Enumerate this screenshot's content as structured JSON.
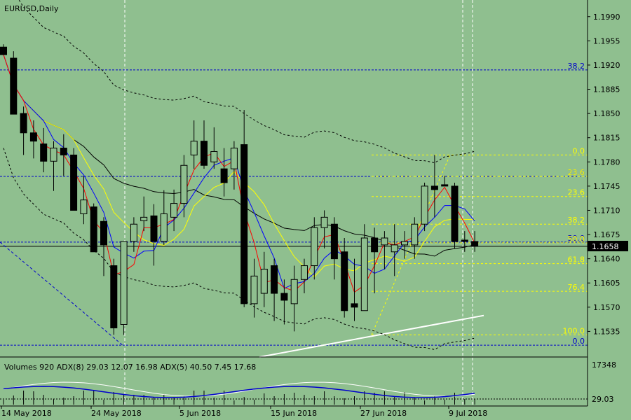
{
  "chart_title": "EURUSD,Daily",
  "indicator_title": "Volumes 920 ADX(8) 29.03 12.07 16.98 ADX(5) 40.50 7.45 17.68",
  "current_price_label": "1.1658",
  "colors": {
    "background": "#8fbf8f",
    "bear": "#000000",
    "bull": "#8fbf8f",
    "ma_fast": "#ff0000",
    "ma_mid": "#0000ff",
    "ma_slow": "#ffff00",
    "ma_long": "#000000",
    "fib": "#ffff00",
    "hlines": "#0000cc",
    "trendline": "#ffffff"
  },
  "chart_data": {
    "type": "candlestick",
    "symbol": "EURUSD",
    "timeframe": "Daily",
    "ylim": [
      1.15,
      1.201
    ],
    "y_ticks": [
      "1.1990",
      "1.1955",
      "1.1920",
      "1.1885",
      "1.1850",
      "1.1815",
      "1.1780",
      "1.1745",
      "1.1710",
      "1.1675",
      "1.1640",
      "1.1605",
      "1.1570",
      "1.1535"
    ],
    "x_tick_labels": [
      "14 May 2018",
      "24 May 2018",
      "5 Jun 2018",
      "15 Jun 2018",
      "27 Jun 2018",
      "9 Jul 2018"
    ],
    "candles": [
      {
        "o": 1.1946,
        "h": 1.195,
        "l": 1.1935,
        "c": 1.1935
      },
      {
        "o": 1.193,
        "h": 1.194,
        "l": 1.1849,
        "c": 1.1849
      },
      {
        "o": 1.185,
        "h": 1.186,
        "l": 1.179,
        "c": 1.1822
      },
      {
        "o": 1.1822,
        "h": 1.184,
        "l": 1.1785,
        "c": 1.181
      },
      {
        "o": 1.1806,
        "h": 1.1829,
        "l": 1.1765,
        "c": 1.1781
      },
      {
        "o": 1.1781,
        "h": 1.181,
        "l": 1.1738,
        "c": 1.18
      },
      {
        "o": 1.18,
        "h": 1.182,
        "l": 1.176,
        "c": 1.179
      },
      {
        "o": 1.179,
        "h": 1.18,
        "l": 1.171,
        "c": 1.171
      },
      {
        "o": 1.1705,
        "h": 1.176,
        "l": 1.169,
        "c": 1.1725
      },
      {
        "o": 1.1715,
        "h": 1.172,
        "l": 1.165,
        "c": 1.165
      },
      {
        "o": 1.1694,
        "h": 1.17,
        "l": 1.1615,
        "c": 1.166
      },
      {
        "o": 1.163,
        "h": 1.164,
        "l": 1.153,
        "c": 1.154
      },
      {
        "o": 1.1545,
        "h": 1.1665,
        "l": 1.153,
        "c": 1.1665
      },
      {
        "o": 1.1665,
        "h": 1.17,
        "l": 1.165,
        "c": 1.169
      },
      {
        "o": 1.1695,
        "h": 1.173,
        "l": 1.168,
        "c": 1.17
      },
      {
        "o": 1.1702,
        "h": 1.1719,
        "l": 1.163,
        "c": 1.1665
      },
      {
        "o": 1.1665,
        "h": 1.1739,
        "l": 1.166,
        "c": 1.1705
      },
      {
        "o": 1.17,
        "h": 1.174,
        "l": 1.168,
        "c": 1.172
      },
      {
        "o": 1.172,
        "h": 1.179,
        "l": 1.17,
        "c": 1.1775
      },
      {
        "o": 1.179,
        "h": 1.184,
        "l": 1.177,
        "c": 1.181
      },
      {
        "o": 1.181,
        "h": 1.184,
        "l": 1.177,
        "c": 1.1775
      },
      {
        "o": 1.178,
        "h": 1.183,
        "l": 1.177,
        "c": 1.1795
      },
      {
        "o": 1.177,
        "h": 1.18,
        "l": 1.173,
        "c": 1.175
      },
      {
        "o": 1.177,
        "h": 1.181,
        "l": 1.174,
        "c": 1.18
      },
      {
        "o": 1.1805,
        "h": 1.1855,
        "l": 1.157,
        "c": 1.1575
      },
      {
        "o": 1.1575,
        "h": 1.164,
        "l": 1.1555,
        "c": 1.1615
      },
      {
        "o": 1.159,
        "h": 1.165,
        "l": 1.157,
        "c": 1.1625
      },
      {
        "o": 1.163,
        "h": 1.164,
        "l": 1.155,
        "c": 1.159
      },
      {
        "o": 1.159,
        "h": 1.161,
        "l": 1.1545,
        "c": 1.158
      },
      {
        "o": 1.1575,
        "h": 1.163,
        "l": 1.1535,
        "c": 1.161
      },
      {
        "o": 1.161,
        "h": 1.164,
        "l": 1.159,
        "c": 1.163
      },
      {
        "o": 1.163,
        "h": 1.17,
        "l": 1.161,
        "c": 1.1685
      },
      {
        "o": 1.1685,
        "h": 1.171,
        "l": 1.1655,
        "c": 1.17
      },
      {
        "o": 1.169,
        "h": 1.17,
        "l": 1.161,
        "c": 1.164
      },
      {
        "o": 1.165,
        "h": 1.167,
        "l": 1.1555,
        "c": 1.1565
      },
      {
        "o": 1.1575,
        "h": 1.164,
        "l": 1.155,
        "c": 1.157
      },
      {
        "o": 1.1565,
        "h": 1.169,
        "l": 1.1565,
        "c": 1.167
      },
      {
        "o": 1.167,
        "h": 1.1685,
        "l": 1.159,
        "c": 1.165
      },
      {
        "o": 1.166,
        "h": 1.168,
        "l": 1.1625,
        "c": 1.167
      },
      {
        "o": 1.165,
        "h": 1.169,
        "l": 1.1615,
        "c": 1.166
      },
      {
        "o": 1.166,
        "h": 1.168,
        "l": 1.164,
        "c": 1.1665
      },
      {
        "o": 1.166,
        "h": 1.17,
        "l": 1.164,
        "c": 1.169
      },
      {
        "o": 1.169,
        "h": 1.175,
        "l": 1.168,
        "c": 1.1745
      },
      {
        "o": 1.1745,
        "h": 1.179,
        "l": 1.17,
        "c": 1.174
      },
      {
        "o": 1.1747,
        "h": 1.176,
        "l": 1.1745,
        "c": 1.1745
      },
      {
        "o": 1.1745,
        "h": 1.175,
        "l": 1.1655,
        "c": 1.1665
      },
      {
        "o": 1.1667,
        "h": 1.168,
        "l": 1.165,
        "c": 1.1665
      },
      {
        "o": 1.1665,
        "h": 1.168,
        "l": 1.165,
        "c": 1.1658
      }
    ],
    "fib_levels": [
      {
        "label": "0.0",
        "price": 1.179
      },
      {
        "label": "23.6",
        "price": 1.1759
      },
      {
        "label": "23.6",
        "price": 1.173
      },
      {
        "label": "38.2",
        "price": 1.169
      },
      {
        "label": "50.0",
        "price": 1.1663
      },
      {
        "label": "61.8",
        "price": 1.1633
      },
      {
        "label": "76.4",
        "price": 1.1593
      },
      {
        "label": "100.0",
        "price": 1.153
      }
    ],
    "blue_levels": [
      {
        "label": "38.2",
        "price": 1.1913
      },
      {
        "label": "23.6",
        "price": 1.1759
      },
      {
        "label": "50.0",
        "price": 1.1664
      },
      {
        "label": "0.0",
        "price": 1.1515
      }
    ],
    "current_price": 1.1658
  },
  "volume_axis": {
    "top_label": "17348",
    "bottom_label": "29.03"
  }
}
